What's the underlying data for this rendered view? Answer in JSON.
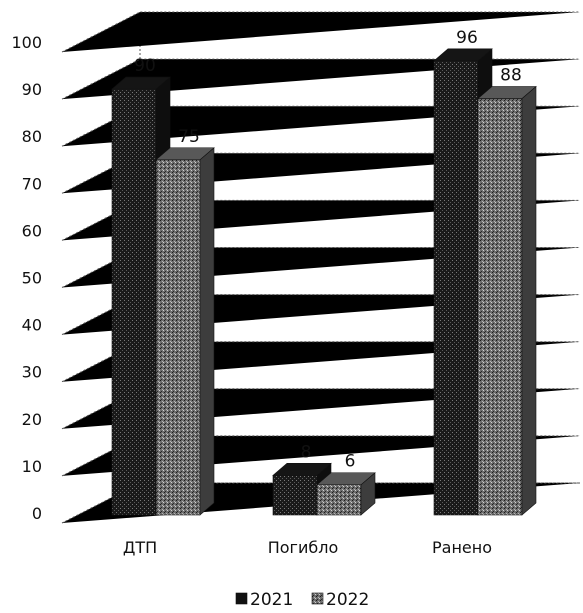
{
  "chart_data": {
    "type": "bar",
    "title": "",
    "xlabel": "",
    "ylabel": "",
    "categories": [
      "ДТП",
      "Погибло",
      "Ранено"
    ],
    "series": [
      {
        "name": "2021",
        "values": [
          90,
          8,
          96
        ],
        "color": "#1a1a1a"
      },
      {
        "name": "2022",
        "values": [
          75,
          6,
          88
        ],
        "color": "#6e6e6e"
      }
    ],
    "ylim": [
      0,
      100
    ],
    "yticks": [
      0,
      10,
      20,
      30,
      40,
      50,
      60,
      70,
      80,
      90,
      100
    ],
    "grid": true,
    "three_d": true,
    "legend_position": "bottom"
  }
}
